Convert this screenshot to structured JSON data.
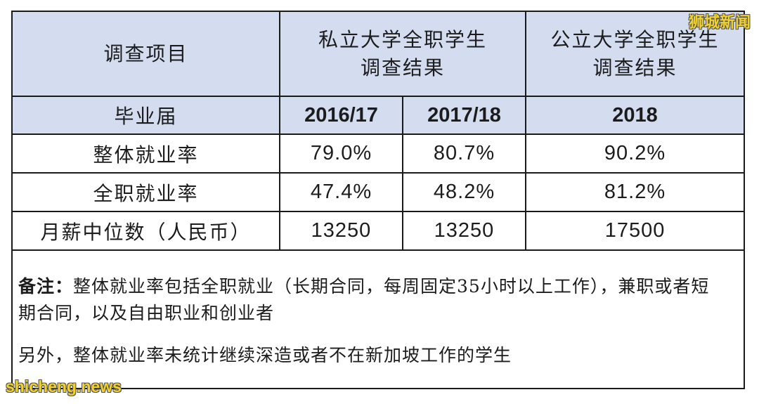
{
  "header": {
    "item_label": "调查项目",
    "private_line1": "私立大学全职学生",
    "private_line2": "调查结果",
    "public_line1": "公立大学全职学生",
    "public_line2": "调查结果"
  },
  "cohort": {
    "label": "毕业届",
    "private_year1": "2016/17",
    "private_year2": "2017/18",
    "public_year": "2018"
  },
  "rows": [
    {
      "label": "整体就业率",
      "v1": "79.0%",
      "v2": "80.7%",
      "v3": "90.2%"
    },
    {
      "label": "全职就业率",
      "v1": "47.4%",
      "v2": "48.2%",
      "v3": "81.2%"
    },
    {
      "label": "月薪中位数（人民币）",
      "v1": "13250",
      "v2": "13250",
      "v3": "17500"
    }
  ],
  "notes": {
    "label": "备注：",
    "text1": "整体就业率包括全职就业（长期合同，每周固定35小时以上工作），兼职或者短期合同，以及自由职业和创业者",
    "text2": "另外，整体就业率未统计继续深造或者不在新加坡工作的学生"
  },
  "watermarks": {
    "top_right": "狮城新闻",
    "bottom_left": "shicheng.news"
  }
}
